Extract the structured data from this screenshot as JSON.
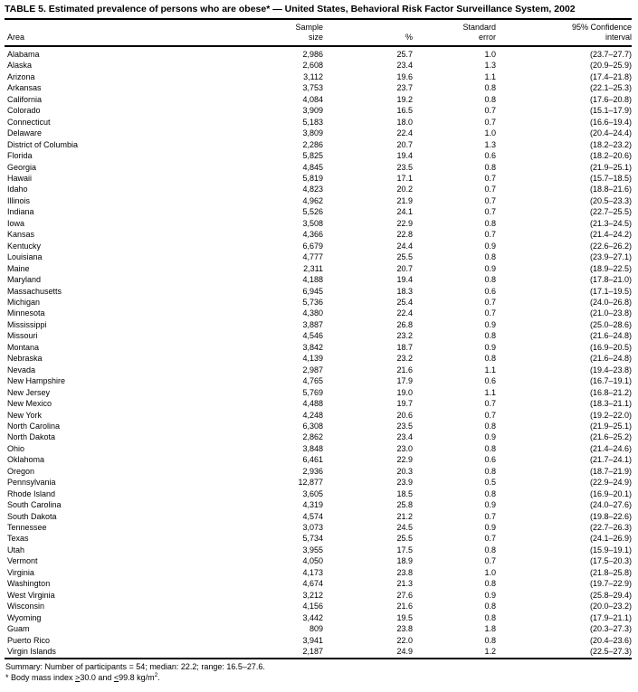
{
  "title": "TABLE 5. Estimated prevalence of persons who are obese* — United States, Behavioral Risk Factor Surveillance System, 2002",
  "columns": {
    "area": "Area",
    "sample_size": "Sample\nsize",
    "percent": "%",
    "standard_error": "Standard\nerror",
    "confidence_interval": "95% Confidence\ninterval"
  },
  "rows": [
    {
      "area": "Alabama",
      "sample_size": "2,986",
      "percent": "25.7",
      "standard_error": "1.0",
      "confidence_interval": "(23.7–27.7)"
    },
    {
      "area": "Alaska",
      "sample_size": "2,608",
      "percent": "23.4",
      "standard_error": "1.3",
      "confidence_interval": "(20.9–25.9)"
    },
    {
      "area": "Arizona",
      "sample_size": "3,112",
      "percent": "19.6",
      "standard_error": "1.1",
      "confidence_interval": "(17.4–21.8)"
    },
    {
      "area": "Arkansas",
      "sample_size": "3,753",
      "percent": "23.7",
      "standard_error": "0.8",
      "confidence_interval": "(22.1–25.3)"
    },
    {
      "area": "California",
      "sample_size": "4,084",
      "percent": "19.2",
      "standard_error": "0.8",
      "confidence_interval": "(17.6–20.8)"
    },
    {
      "area": "Colorado",
      "sample_size": "3,909",
      "percent": "16.5",
      "standard_error": "0.7",
      "confidence_interval": "(15.1–17.9)"
    },
    {
      "area": "Connecticut",
      "sample_size": "5,183",
      "percent": "18.0",
      "standard_error": "0.7",
      "confidence_interval": "(16.6–19.4)"
    },
    {
      "area": "Delaware",
      "sample_size": "3,809",
      "percent": "22.4",
      "standard_error": "1.0",
      "confidence_interval": "(20.4–24.4)"
    },
    {
      "area": "District of Columbia",
      "sample_size": "2,286",
      "percent": "20.7",
      "standard_error": "1.3",
      "confidence_interval": "(18.2–23.2)"
    },
    {
      "area": "Florida",
      "sample_size": "5,825",
      "percent": "19.4",
      "standard_error": "0.6",
      "confidence_interval": "(18.2–20.6)"
    },
    {
      "area": "Georgia",
      "sample_size": "4,845",
      "percent": "23.5",
      "standard_error": "0.8",
      "confidence_interval": "(21.9–25.1)"
    },
    {
      "area": "Hawaii",
      "sample_size": "5,819",
      "percent": "17.1",
      "standard_error": "0.7",
      "confidence_interval": "(15.7–18.5)"
    },
    {
      "area": "Idaho",
      "sample_size": "4,823",
      "percent": "20.2",
      "standard_error": "0.7",
      "confidence_interval": "(18.8–21.6)"
    },
    {
      "area": "Illinois",
      "sample_size": "4,962",
      "percent": "21.9",
      "standard_error": "0.7",
      "confidence_interval": "(20.5–23.3)"
    },
    {
      "area": "Indiana",
      "sample_size": "5,526",
      "percent": "24.1",
      "standard_error": "0.7",
      "confidence_interval": "(22.7–25.5)"
    },
    {
      "area": "Iowa",
      "sample_size": "3,508",
      "percent": "22.9",
      "standard_error": "0.8",
      "confidence_interval": "(21.3–24.5)"
    },
    {
      "area": "Kansas",
      "sample_size": "4,366",
      "percent": "22.8",
      "standard_error": "0.7",
      "confidence_interval": "(21.4–24.2)"
    },
    {
      "area": "Kentucky",
      "sample_size": "6,679",
      "percent": "24.4",
      "standard_error": "0.9",
      "confidence_interval": "(22.6–26.2)"
    },
    {
      "area": "Louisiana",
      "sample_size": "4,777",
      "percent": "25.5",
      "standard_error": "0.8",
      "confidence_interval": "(23.9–27.1)"
    },
    {
      "area": "Maine",
      "sample_size": "2,311",
      "percent": "20.7",
      "standard_error": "0.9",
      "confidence_interval": "(18.9–22.5)"
    },
    {
      "area": "Maryland",
      "sample_size": "4,188",
      "percent": "19.4",
      "standard_error": "0.8",
      "confidence_interval": "(17.8–21.0)"
    },
    {
      "area": "Massachusetts",
      "sample_size": "6,945",
      "percent": "18.3",
      "standard_error": "0.6",
      "confidence_interval": "(17.1–19.5)"
    },
    {
      "area": "Michigan",
      "sample_size": "5,736",
      "percent": "25.4",
      "standard_error": "0.7",
      "confidence_interval": "(24.0–26.8)"
    },
    {
      "area": "Minnesota",
      "sample_size": "4,380",
      "percent": "22.4",
      "standard_error": "0.7",
      "confidence_interval": "(21.0–23.8)"
    },
    {
      "area": "Mississippi",
      "sample_size": "3,887",
      "percent": "26.8",
      "standard_error": "0.9",
      "confidence_interval": "(25.0–28.6)"
    },
    {
      "area": "Missouri",
      "sample_size": "4,546",
      "percent": "23.2",
      "standard_error": "0.8",
      "confidence_interval": "(21.6–24.8)"
    },
    {
      "area": "Montana",
      "sample_size": "3,842",
      "percent": "18.7",
      "standard_error": "0.9",
      "confidence_interval": "(16.9–20.5)"
    },
    {
      "area": "Nebraska",
      "sample_size": "4,139",
      "percent": "23.2",
      "standard_error": "0.8",
      "confidence_interval": "(21.6–24.8)"
    },
    {
      "area": "Nevada",
      "sample_size": "2,987",
      "percent": "21.6",
      "standard_error": "1.1",
      "confidence_interval": "(19.4–23.8)"
    },
    {
      "area": "New Hampshire",
      "sample_size": "4,765",
      "percent": "17.9",
      "standard_error": "0.6",
      "confidence_interval": "(16.7–19.1)"
    },
    {
      "area": "New Jersey",
      "sample_size": "5,769",
      "percent": "19.0",
      "standard_error": "1.1",
      "confidence_interval": "(16.8–21.2)"
    },
    {
      "area": "New Mexico",
      "sample_size": "4,488",
      "percent": "19.7",
      "standard_error": "0.7",
      "confidence_interval": "(18.3–21.1)"
    },
    {
      "area": "New York",
      "sample_size": "4,248",
      "percent": "20.6",
      "standard_error": "0.7",
      "confidence_interval": "(19.2–22.0)"
    },
    {
      "area": "North Carolina",
      "sample_size": "6,308",
      "percent": "23.5",
      "standard_error": "0.8",
      "confidence_interval": "(21.9–25.1)"
    },
    {
      "area": "North Dakota",
      "sample_size": "2,862",
      "percent": "23.4",
      "standard_error": "0.9",
      "confidence_interval": "(21.6–25.2)"
    },
    {
      "area": "Ohio",
      "sample_size": "3,848",
      "percent": "23.0",
      "standard_error": "0.8",
      "confidence_interval": "(21.4–24.6)"
    },
    {
      "area": "Oklahoma",
      "sample_size": "6,461",
      "percent": "22.9",
      "standard_error": "0.6",
      "confidence_interval": "(21.7–24.1)"
    },
    {
      "area": "Oregon",
      "sample_size": "2,936",
      "percent": "20.3",
      "standard_error": "0.8",
      "confidence_interval": "(18.7–21.9)"
    },
    {
      "area": "Pennsylvania",
      "sample_size": "12,877",
      "percent": "23.9",
      "standard_error": "0.5",
      "confidence_interval": "(22.9–24.9)"
    },
    {
      "area": "Rhode Island",
      "sample_size": "3,605",
      "percent": "18.5",
      "standard_error": "0.8",
      "confidence_interval": "(16.9–20.1)"
    },
    {
      "area": "South Carolina",
      "sample_size": "4,319",
      "percent": "25.8",
      "standard_error": "0.9",
      "confidence_interval": "(24.0–27.6)"
    },
    {
      "area": "South Dakota",
      "sample_size": "4,574",
      "percent": "21.2",
      "standard_error": "0.7",
      "confidence_interval": "(19.8–22.6)"
    },
    {
      "area": "Tennessee",
      "sample_size": "3,073",
      "percent": "24.5",
      "standard_error": "0.9",
      "confidence_interval": "(22.7–26.3)"
    },
    {
      "area": "Texas",
      "sample_size": "5,734",
      "percent": "25.5",
      "standard_error": "0.7",
      "confidence_interval": "(24.1–26.9)"
    },
    {
      "area": "Utah",
      "sample_size": "3,955",
      "percent": "17.5",
      "standard_error": "0.8",
      "confidence_interval": "(15.9–19.1)"
    },
    {
      "area": "Vermont",
      "sample_size": "4,050",
      "percent": "18.9",
      "standard_error": "0.7",
      "confidence_interval": "(17.5–20.3)"
    },
    {
      "area": "Virginia",
      "sample_size": "4,173",
      "percent": "23.8",
      "standard_error": "1.0",
      "confidence_interval": "(21.8–25.8)"
    },
    {
      "area": "Washington",
      "sample_size": "4,674",
      "percent": "21.3",
      "standard_error": "0.8",
      "confidence_interval": "(19.7–22.9)"
    },
    {
      "area": "West Virginia",
      "sample_size": "3,212",
      "percent": "27.6",
      "standard_error": "0.9",
      "confidence_interval": "(25.8–29.4)"
    },
    {
      "area": "Wisconsin",
      "sample_size": "4,156",
      "percent": "21.6",
      "standard_error": "0.8",
      "confidence_interval": "(20.0–23.2)"
    },
    {
      "area": "Wyoming",
      "sample_size": "3,442",
      "percent": "19.5",
      "standard_error": "0.8",
      "confidence_interval": "(17.9–21.1)"
    },
    {
      "area": "Guam",
      "sample_size": "809",
      "percent": "23.8",
      "standard_error": "1.8",
      "confidence_interval": "(20.3–27.3)"
    },
    {
      "area": "Puerto Rico",
      "sample_size": "3,941",
      "percent": "22.0",
      "standard_error": "0.8",
      "confidence_interval": "(20.4–23.6)"
    },
    {
      "area": "Virgin Islands",
      "sample_size": "2,187",
      "percent": "24.9",
      "standard_error": "1.2",
      "confidence_interval": "(22.5–27.3)"
    }
  ],
  "summary": "Summary: Number of participants = 54; median: 22.2; range: 16.5–27.6.",
  "footnote": {
    "prefix": "* Body mass index ",
    "gte_symbol": ">",
    "mid": "30.0 and ",
    "lte_symbol": "<",
    "unit": "99.8 kg/m",
    "superscript": "2",
    "period": "."
  },
  "colors": {
    "text": "#000000",
    "background": "#ffffff"
  }
}
